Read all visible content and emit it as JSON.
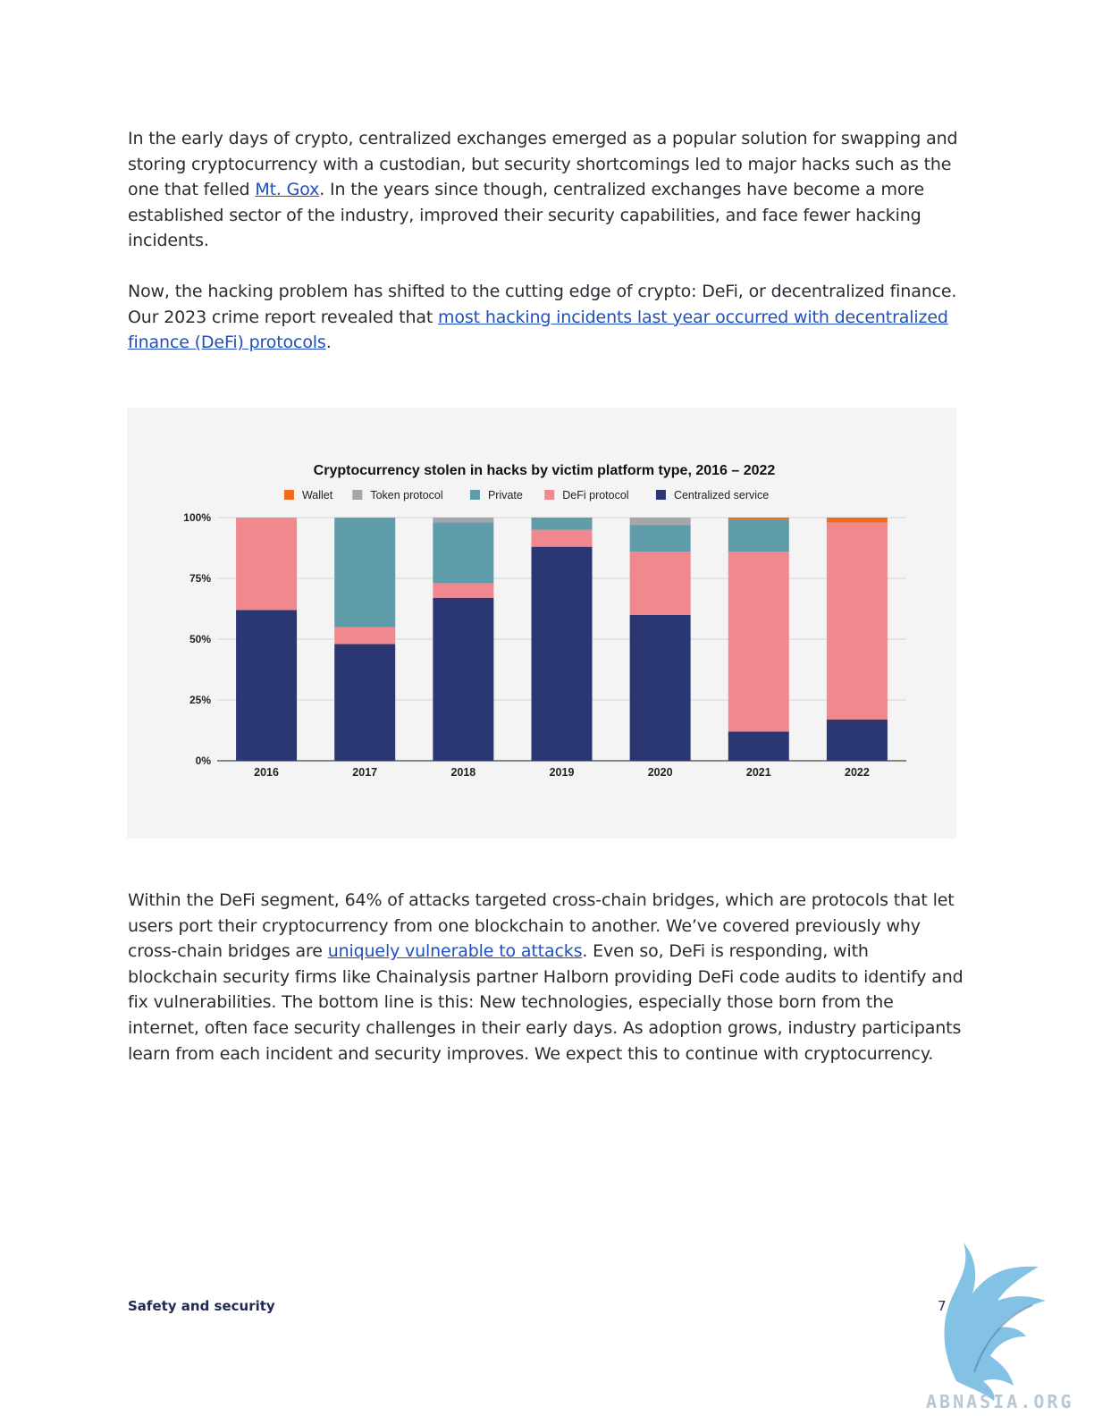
{
  "paragraphs": {
    "p1": {
      "before_link": "In the early days of crypto, centralized exchanges emerged as a popular solution for swapping and storing cryptocurrency with a custodian, but security shortcomings led to major hacks such as the one that felled ",
      "link": "Mt. Gox",
      "after_link": ". In the years since though, centralized exchanges have become a more established sector of the industry, improved their security capabilities, and face fewer hacking incidents."
    },
    "p2": {
      "before_link": "Now, the hacking problem has shifted to the cutting edge of crypto: DeFi, or decentralized finance. Our 2023 crime report revealed that ",
      "link": "most hacking incidents last year occurred with decentralized finance (DeFi) protocols",
      "after_link": "."
    },
    "p3": {
      "before_link": "Within the DeFi segment, 64% of attacks targeted cross-chain bridges, which are protocols that let users port their cryptocurrency from one blockchain to another. We’ve covered previously why cross-chain bridges are ",
      "link": "uniquely vulnerable to attacks",
      "after_link": ". Even so, DeFi is responding, with blockchain security firms like Chainalysis partner Halborn providing DeFi code audits to identify and fix vulnerabilities. The bottom line is this: New technologies, especially those born from the internet, often face security challenges in their early days. As adoption grows, industry participants learn from each incident and security improves. We expect this to continue with cryptocurrency."
    }
  },
  "chart_data": {
    "type": "bar",
    "stacked": true,
    "title": "Cryptocurrency stolen in hacks by victim platform type, 2016 – 2022",
    "categories": [
      "2016",
      "2017",
      "2018",
      "2019",
      "2020",
      "2021",
      "2022"
    ],
    "y_ticks": [
      "0%",
      "25%",
      "50%",
      "75%",
      "100%"
    ],
    "ylim": [
      0,
      100
    ],
    "grid": true,
    "legend_position": "top",
    "series": [
      {
        "name": "Centralized service",
        "color": "#2b3773",
        "values": [
          62,
          48,
          67,
          88,
          60,
          12,
          17
        ]
      },
      {
        "name": "DeFi protocol",
        "color": "#f0888d",
        "values": [
          38,
          7,
          6,
          7,
          26,
          74,
          81
        ]
      },
      {
        "name": "Private",
        "color": "#5e9ca9",
        "values": [
          0,
          45,
          25,
          5,
          11,
          13,
          0
        ]
      },
      {
        "name": "Token protocol",
        "color": "#a3a6ab",
        "values": [
          0,
          0,
          2,
          0,
          3,
          0,
          0
        ]
      },
      {
        "name": "Wallet",
        "color": "#f26b1d",
        "values": [
          0,
          0,
          0,
          0,
          0,
          1,
          2
        ]
      }
    ],
    "legend_order": [
      "Wallet",
      "Token protocol",
      "Private",
      "DeFi protocol",
      "Centralized service"
    ]
  },
  "footer": {
    "section": "Safety and security",
    "page_number": "7",
    "watermark": "ABNASIA.ORG"
  }
}
